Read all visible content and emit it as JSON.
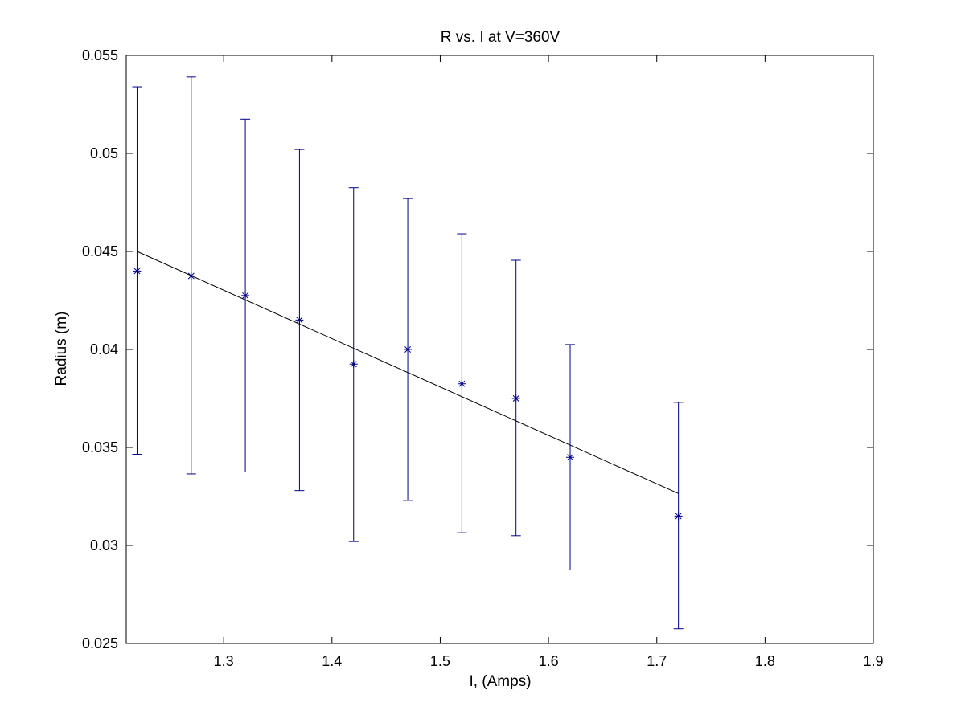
{
  "chart_data": {
    "type": "scatter",
    "title": "R vs. I at V=360V",
    "xlabel": "I, (Amps)",
    "ylabel": "Radius (m)",
    "xlim": [
      1.21,
      1.9
    ],
    "ylim": [
      0.025,
      0.055
    ],
    "x_ticks": [
      "1.3",
      "1.4",
      "1.5",
      "1.6",
      "1.7",
      "1.8",
      "1.9"
    ],
    "y_ticks": [
      "0.025",
      "0.03",
      "0.035",
      "0.04",
      "0.045",
      "0.05",
      "0.055"
    ],
    "grid": false,
    "colors": {
      "points": "#00008b",
      "fit": "#000000",
      "axes": "#000000"
    },
    "series": [
      {
        "marker": "asterisk",
        "x": [
          1.22,
          1.27,
          1.32,
          1.37,
          1.42,
          1.47,
          1.52,
          1.57,
          1.62,
          1.72
        ],
        "y": [
          0.044,
          0.04375,
          0.04275,
          0.0415,
          0.03925,
          0.04,
          0.03825,
          0.0375,
          0.0345,
          0.0315
        ],
        "y_lower": [
          0.03465,
          0.03365,
          0.03375,
          0.0328,
          0.0302,
          0.0323,
          0.03065,
          0.0305,
          0.02875,
          0.02575
        ],
        "y_upper": [
          0.0534,
          0.0539,
          0.05175,
          0.0502,
          0.04825,
          0.0477,
          0.0459,
          0.04455,
          0.04025,
          0.0373
        ]
      }
    ],
    "fit_line": {
      "x": [
        1.22,
        1.72
      ],
      "y": [
        0.045,
        0.03265
      ]
    }
  }
}
